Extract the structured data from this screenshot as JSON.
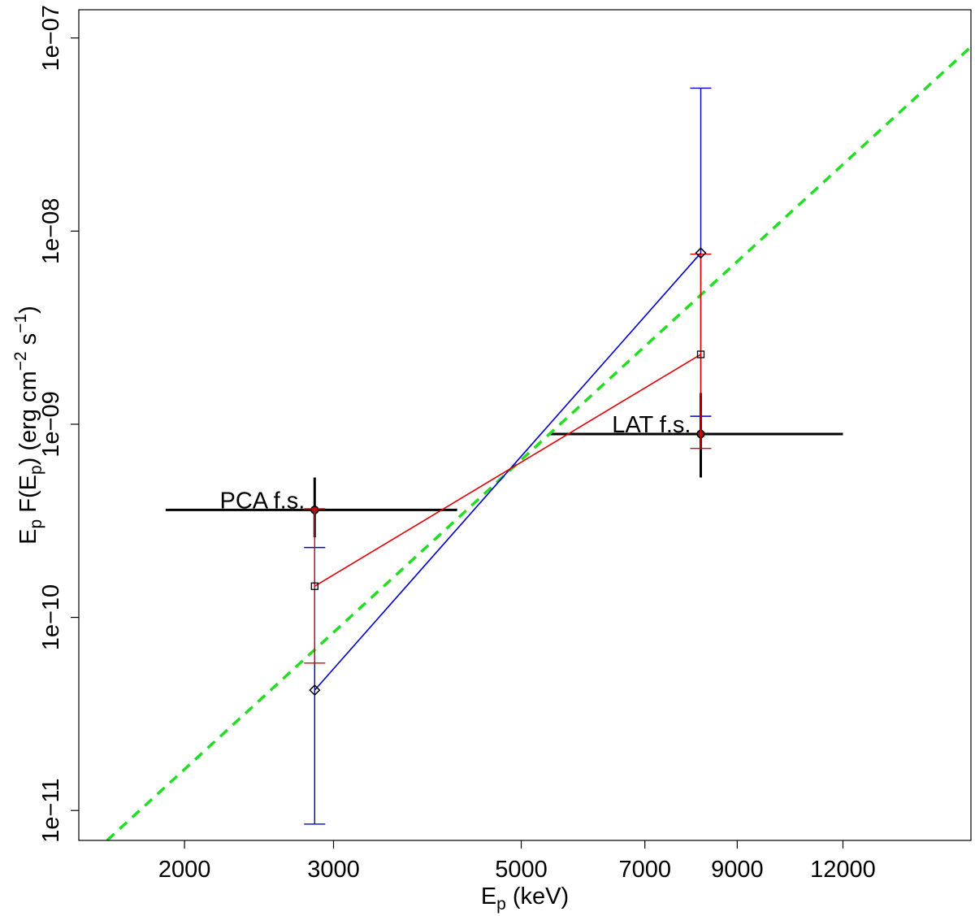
{
  "chart_data": {
    "type": "scatter",
    "title": "",
    "xlabel": {
      "main": "E",
      "sub": "p",
      "rest": " (keV)"
    },
    "ylabel": {
      "p1": "E",
      "p1sub": "p",
      "p2": " F(E",
      "p2sub": "p",
      "p3": ") (erg cm",
      "p3sup": "−2",
      "p4": " s",
      "p4sup": "−1",
      "p5": ")"
    },
    "x_scale": "log",
    "y_scale": "log",
    "xlim": [
      1500,
      17000
    ],
    "ylim": [
      7e-12,
      1.4e-07
    ],
    "x_ticks": [
      2000,
      3000,
      5000,
      7000,
      9000,
      12000
    ],
    "x_tick_labels": [
      "2000",
      "3000",
      "5000",
      "7000",
      "9000",
      "12000"
    ],
    "y_ticks": [
      1e-11,
      1e-10,
      1e-09,
      1e-08,
      1e-07
    ],
    "y_tick_labels": [
      "1e−11",
      "1e−10",
      "1e−09",
      "1e−08",
      "1e−07"
    ],
    "colors": {
      "blue": "#0000cc",
      "red": "#e00000",
      "green": "#22dd22",
      "black": "#000000",
      "darkred": "#8b1a1a"
    },
    "series": [
      {
        "style": "blue-diamond",
        "x": [
          2850,
          8150
        ],
        "y": [
          4.2e-11,
          7.7e-09
        ],
        "err_low": [
          8.5e-12,
          1.1e-09
        ],
        "err_high": [
          2.3e-10,
          5.5e-08
        ]
      },
      {
        "style": "red-square",
        "x": [
          2850,
          8150
        ],
        "y": [
          1.45e-10,
          2.3e-09
        ],
        "err_low": [
          5.8e-11,
          7.5e-10
        ],
        "err_high": [
          3.65e-10,
          7.6e-09
        ]
      }
    ],
    "fiducial": [
      {
        "label": "PCA f.s.",
        "x": 2850,
        "y": 3.6e-10,
        "x_range": [
          1900,
          4200
        ],
        "y_range": [
          2.6e-10,
          5.3e-10
        ]
      },
      {
        "label": "LAT f.s.",
        "x": 8150,
        "y": 8.9e-10,
        "x_range": [
          5400,
          12000
        ],
        "y_range": [
          5.3e-10,
          1.45e-09
        ]
      }
    ],
    "trend_line": {
      "style": "dashed",
      "color": "green",
      "points": [
        [
          1620,
          7e-12
        ],
        [
          17000,
          9e-08
        ]
      ]
    }
  }
}
